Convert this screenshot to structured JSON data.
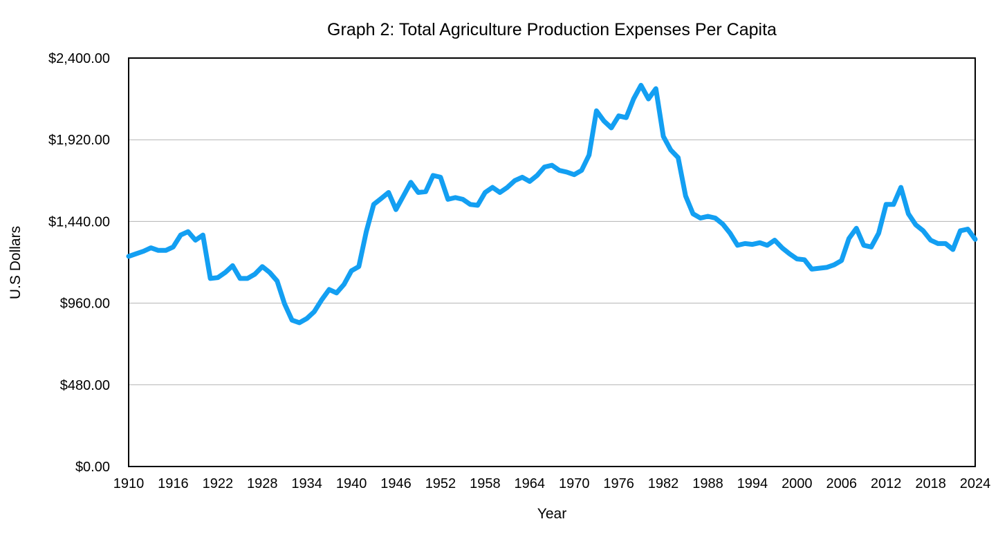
{
  "chart_data": {
    "type": "line",
    "title": "Graph 2: Total Agriculture Production Expenses Per Capita",
    "xlabel": "Year",
    "ylabel": "U.S Dollars",
    "xlim": [
      1910,
      2024
    ],
    "ylim": [
      0,
      2400
    ],
    "grid": true,
    "legend": "none",
    "y_ticks": [
      {
        "value": 0,
        "label": "$0.00"
      },
      {
        "value": 480,
        "label": "$480.00"
      },
      {
        "value": 960,
        "label": "$960.00"
      },
      {
        "value": 1440,
        "label": "$1,440.00"
      },
      {
        "value": 1920,
        "label": "$1,920.00"
      },
      {
        "value": 2400,
        "label": "$2,400.00"
      }
    ],
    "x_ticks": [
      {
        "value": 1910,
        "label": "1910"
      },
      {
        "value": 1916,
        "label": "1916"
      },
      {
        "value": 1922,
        "label": "1922"
      },
      {
        "value": 1928,
        "label": "1928"
      },
      {
        "value": 1934,
        "label": "1934"
      },
      {
        "value": 1940,
        "label": "1940"
      },
      {
        "value": 1946,
        "label": "1946"
      },
      {
        "value": 1952,
        "label": "1952"
      },
      {
        "value": 1958,
        "label": "1958"
      },
      {
        "value": 1964,
        "label": "1964"
      },
      {
        "value": 1970,
        "label": "1970"
      },
      {
        "value": 1976,
        "label": "1976"
      },
      {
        "value": 1982,
        "label": "1982"
      },
      {
        "value": 1988,
        "label": "1988"
      },
      {
        "value": 1994,
        "label": "1994"
      },
      {
        "value": 2000,
        "label": "2000"
      },
      {
        "value": 2006,
        "label": "2006"
      },
      {
        "value": 2012,
        "label": "2012"
      },
      {
        "value": 2018,
        "label": "2018"
      },
      {
        "value": 2024,
        "label": "2024"
      }
    ],
    "series": [
      {
        "name": "Total Agriculture Production Expenses Per Capita",
        "color": "#139ff2",
        "x": [
          1910,
          1911,
          1912,
          1913,
          1914,
          1915,
          1916,
          1917,
          1918,
          1919,
          1920,
          1921,
          1922,
          1923,
          1924,
          1925,
          1926,
          1927,
          1928,
          1929,
          1930,
          1931,
          1932,
          1933,
          1934,
          1935,
          1936,
          1937,
          1938,
          1939,
          1940,
          1941,
          1942,
          1943,
          1944,
          1945,
          1946,
          1947,
          1948,
          1949,
          1950,
          1951,
          1952,
          1953,
          1954,
          1955,
          1956,
          1957,
          1958,
          1959,
          1960,
          1961,
          1962,
          1963,
          1964,
          1965,
          1966,
          1967,
          1968,
          1969,
          1970,
          1971,
          1972,
          1973,
          1974,
          1975,
          1976,
          1977,
          1978,
          1979,
          1980,
          1981,
          1982,
          1983,
          1984,
          1985,
          1986,
          1987,
          1988,
          1989,
          1990,
          1991,
          1992,
          1993,
          1994,
          1995,
          1996,
          1997,
          1998,
          1999,
          2000,
          2001,
          2002,
          2003,
          2004,
          2005,
          2006,
          2007,
          2008,
          2009,
          2010,
          2011,
          2012,
          2013,
          2014,
          2015,
          2016,
          2017,
          2018,
          2019,
          2020,
          2021,
          2022,
          2023,
          2024
        ],
        "values": [
          1235,
          1250,
          1265,
          1285,
          1270,
          1270,
          1290,
          1360,
          1380,
          1330,
          1360,
          1105,
          1110,
          1140,
          1180,
          1105,
          1105,
          1130,
          1175,
          1140,
          1090,
          955,
          860,
          845,
          870,
          910,
          980,
          1040,
          1020,
          1070,
          1150,
          1175,
          1380,
          1540,
          1575,
          1610,
          1510,
          1590,
          1670,
          1610,
          1615,
          1710,
          1700,
          1570,
          1580,
          1570,
          1540,
          1535,
          1610,
          1640,
          1610,
          1640,
          1680,
          1700,
          1675,
          1710,
          1760,
          1770,
          1740,
          1730,
          1715,
          1740,
          1830,
          2090,
          2030,
          1990,
          2060,
          2050,
          2160,
          2240,
          2160,
          2220,
          1940,
          1860,
          1815,
          1590,
          1485,
          1460,
          1470,
          1460,
          1425,
          1370,
          1300,
          1310,
          1305,
          1315,
          1300,
          1330,
          1285,
          1250,
          1220,
          1215,
          1160,
          1165,
          1170,
          1185,
          1210,
          1340,
          1400,
          1300,
          1290,
          1370,
          1540,
          1540,
          1640,
          1485,
          1420,
          1385,
          1330,
          1310,
          1310,
          1275,
          1385,
          1395,
          1335
        ]
      }
    ]
  }
}
